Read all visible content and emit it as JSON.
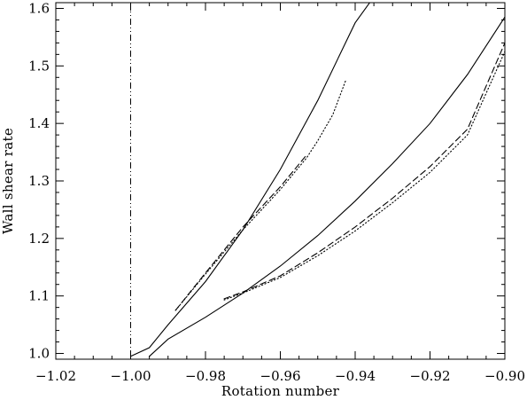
{
  "chart_data": {
    "type": "line",
    "title": "",
    "xlabel": "Rotation number",
    "ylabel": "Wall shear rate",
    "xlim": [
      -1.02,
      -0.9
    ],
    "ylim": [
      0.99,
      1.61
    ],
    "grid": false,
    "x_ticks": [
      "−1.02",
      "−1.00",
      "−0.98",
      "−0.96",
      "−0.94",
      "−0.92",
      "−0.90"
    ],
    "x_tick_values": [
      -1.02,
      -1.0,
      -0.98,
      -0.96,
      -0.94,
      -0.92,
      -0.9
    ],
    "y_ticks": [
      "1.0",
      "1.1",
      "1.2",
      "1.3",
      "1.4",
      "1.5",
      "1.6"
    ],
    "y_tick_values": [
      1.0,
      1.1,
      1.2,
      1.3,
      1.4,
      1.5,
      1.6
    ],
    "reference_line": {
      "style": "dash-dot-dot",
      "x": -1.0
    },
    "series": [
      {
        "style": "solid",
        "points": [
          [
            -1.0,
            0.995
          ],
          [
            -0.995,
            1.01
          ],
          [
            -0.99,
            1.05
          ],
          [
            -0.98,
            1.125
          ],
          [
            -0.97,
            1.215
          ],
          [
            -0.96,
            1.32
          ],
          [
            -0.95,
            1.44
          ],
          [
            -0.94,
            1.575
          ],
          [
            -0.935,
            1.62
          ]
        ]
      },
      {
        "style": "dashed",
        "points": [
          [
            -0.988,
            1.075
          ],
          [
            -0.98,
            1.14
          ],
          [
            -0.97,
            1.22
          ],
          [
            -0.96,
            1.29
          ],
          [
            -0.953,
            1.345
          ]
        ]
      },
      {
        "style": "dotted",
        "points": [
          [
            -0.988,
            1.075
          ],
          [
            -0.98,
            1.138
          ],
          [
            -0.97,
            1.215
          ],
          [
            -0.96,
            1.285
          ],
          [
            -0.953,
            1.34
          ],
          [
            -0.95,
            1.37
          ],
          [
            -0.946,
            1.415
          ],
          [
            -0.9425,
            1.475
          ]
        ]
      },
      {
        "style": "solid",
        "points": [
          [
            -0.995,
            0.995
          ],
          [
            -0.99,
            1.025
          ],
          [
            -0.98,
            1.063
          ],
          [
            -0.97,
            1.105
          ],
          [
            -0.96,
            1.152
          ],
          [
            -0.95,
            1.205
          ],
          [
            -0.94,
            1.265
          ],
          [
            -0.93,
            1.33
          ],
          [
            -0.92,
            1.4
          ],
          [
            -0.91,
            1.485
          ],
          [
            -0.9,
            1.585
          ]
        ]
      },
      {
        "style": "dashed",
        "points": [
          [
            -0.975,
            1.095
          ],
          [
            -0.97,
            1.107
          ],
          [
            -0.96,
            1.135
          ],
          [
            -0.95,
            1.175
          ],
          [
            -0.94,
            1.22
          ],
          [
            -0.93,
            1.27
          ],
          [
            -0.92,
            1.325
          ],
          [
            -0.91,
            1.39
          ],
          [
            -0.9,
            1.54
          ]
        ]
      },
      {
        "style": "dotted",
        "points": [
          [
            -0.975,
            1.093
          ],
          [
            -0.97,
            1.105
          ],
          [
            -0.96,
            1.132
          ],
          [
            -0.95,
            1.17
          ],
          [
            -0.94,
            1.213
          ],
          [
            -0.93,
            1.262
          ],
          [
            -0.92,
            1.315
          ],
          [
            -0.91,
            1.38
          ],
          [
            -0.9,
            1.525
          ]
        ]
      }
    ]
  }
}
